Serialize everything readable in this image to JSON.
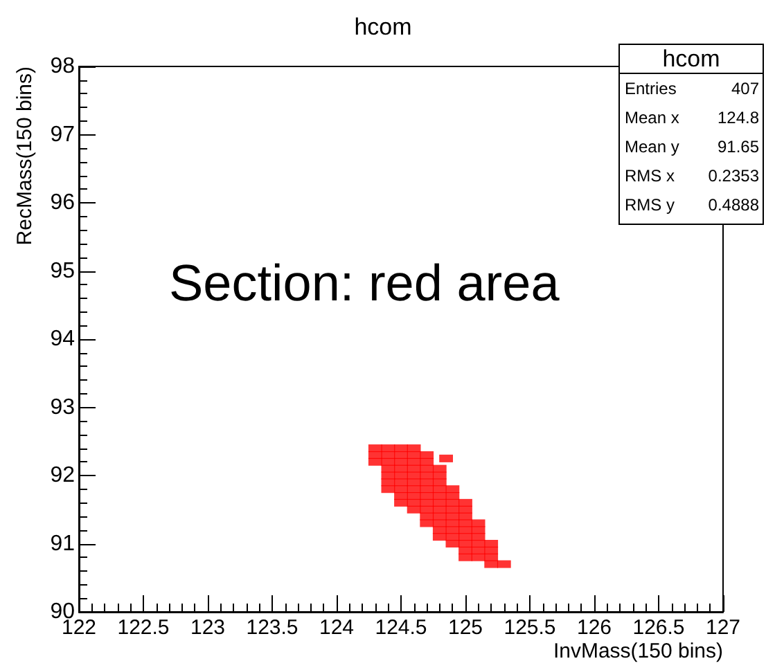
{
  "chart_data": {
    "type": "scatter",
    "title": "hcom",
    "xlabel": "InvMass(150 bins)",
    "ylabel": "RecMass(150 bins)",
    "xlim": [
      122,
      127
    ],
    "xticks": [
      122,
      122.5,
      123,
      123.5,
      124,
      124.5,
      125,
      125.5,
      126,
      126.5,
      127
    ],
    "ylim": [
      90,
      98
    ],
    "yticks": [
      90,
      91,
      92,
      93,
      94,
      95,
      96,
      97,
      98
    ],
    "grid": false,
    "marker": "square",
    "series": [
      {
        "color": "#ff0000",
        "x": [
          124.3,
          124.4,
          124.5,
          124.6,
          124.3,
          124.4,
          124.5,
          124.6,
          124.7,
          124.3,
          124.4,
          124.5,
          124.6,
          124.7,
          124.4,
          124.5,
          124.6,
          124.7,
          124.8,
          124.4,
          124.5,
          124.6,
          124.7,
          124.8,
          124.4,
          124.5,
          124.6,
          124.7,
          124.8,
          124.4,
          124.5,
          124.6,
          124.7,
          124.8,
          124.9,
          124.5,
          124.6,
          124.7,
          124.8,
          124.9,
          124.5,
          124.6,
          124.7,
          124.8,
          124.9,
          125.0,
          124.6,
          124.7,
          124.8,
          124.9,
          125.0,
          124.7,
          124.8,
          124.9,
          125.0,
          124.7,
          124.8,
          124.9,
          125.0,
          125.1,
          124.8,
          124.9,
          125.0,
          125.1,
          124.8,
          124.9,
          125.0,
          125.1,
          124.9,
          125.0,
          125.1,
          125.2,
          125.0,
          125.1,
          125.2,
          125.0,
          125.1,
          125.2,
          125.2,
          125.3,
          124.85
        ],
        "values": [
          92.4,
          92.4,
          92.4,
          92.4,
          92.3,
          92.3,
          92.3,
          92.3,
          92.3,
          92.2,
          92.2,
          92.2,
          92.2,
          92.2,
          92.1,
          92.1,
          92.1,
          92.1,
          92.1,
          92.0,
          92.0,
          92.0,
          92.0,
          92.0,
          91.9,
          91.9,
          91.9,
          91.9,
          91.9,
          91.8,
          91.8,
          91.8,
          91.8,
          91.8,
          91.8,
          91.7,
          91.7,
          91.7,
          91.7,
          91.7,
          91.6,
          91.6,
          91.6,
          91.6,
          91.6,
          91.6,
          91.5,
          91.5,
          91.5,
          91.5,
          91.5,
          91.4,
          91.4,
          91.4,
          91.4,
          91.3,
          91.3,
          91.3,
          91.3,
          91.3,
          91.2,
          91.2,
          91.2,
          91.2,
          91.1,
          91.1,
          91.1,
          91.1,
          91.0,
          91.0,
          91.0,
          91.0,
          90.9,
          90.9,
          90.9,
          90.8,
          90.8,
          90.8,
          90.7,
          90.7,
          92.25
        ]
      }
    ],
    "annotations": [
      "Section: red area",
      "hcom",
      "Entries",
      "407",
      "Mean x",
      "124.8",
      "Mean y",
      "91.65",
      "RMS x",
      "0.2353",
      "RMS y",
      "0.4888"
    ]
  }
}
